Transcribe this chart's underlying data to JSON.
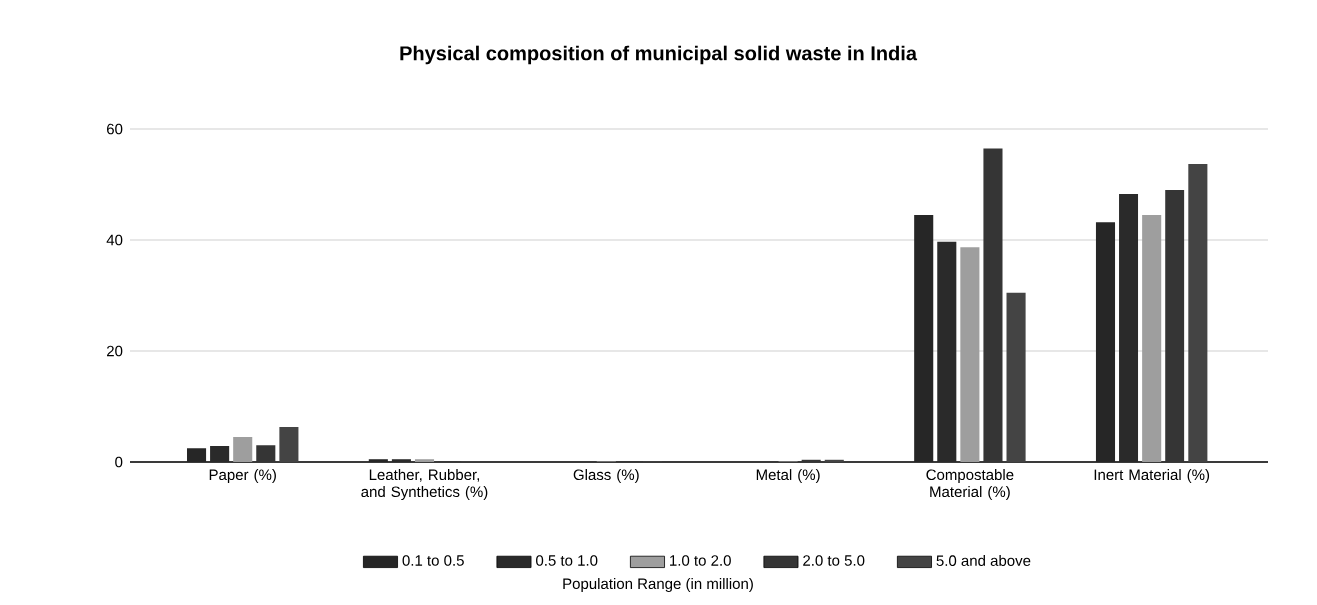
{
  "chart_data": {
    "type": "bar",
    "title": "Physical composition of municipal solid waste in India",
    "categories": [
      "Paper (%)",
      "Leather, Rubber, and Synthetics (%)",
      "Glass (%)",
      "Metal (%)",
      "Compostable Material (%)",
      "Inert Material (%)"
    ],
    "series": [
      {
        "name": "0.1 to 0.5",
        "color": "#262626",
        "values": [
          2.5,
          0.5,
          null,
          null,
          44.5,
          43.2
        ]
      },
      {
        "name": "0.5 to 1.0",
        "color": "#2a2a2a",
        "values": [
          2.9,
          0.5,
          null,
          null,
          39.7,
          48.3
        ]
      },
      {
        "name": "1.0 to 2.0",
        "color": "#9e9e9e",
        "values": [
          4.5,
          0.5,
          0.1,
          0.1,
          38.7,
          44.5
        ]
      },
      {
        "name": "2.0 to 5.0",
        "color": "#353535",
        "values": [
          3.0,
          0.1,
          0.1,
          0.4,
          56.5,
          49.0
        ]
      },
      {
        "name": "5.0 and above",
        "color": "#444444",
        "values": [
          6.3,
          0.1,
          0.1,
          0.4,
          30.5,
          53.7
        ]
      }
    ],
    "legend_title": "Population Range (in million)",
    "ylim": [
      0,
      60
    ],
    "yticks": [
      0,
      20,
      40,
      60
    ],
    "grid": "y",
    "legend": "bottom"
  }
}
